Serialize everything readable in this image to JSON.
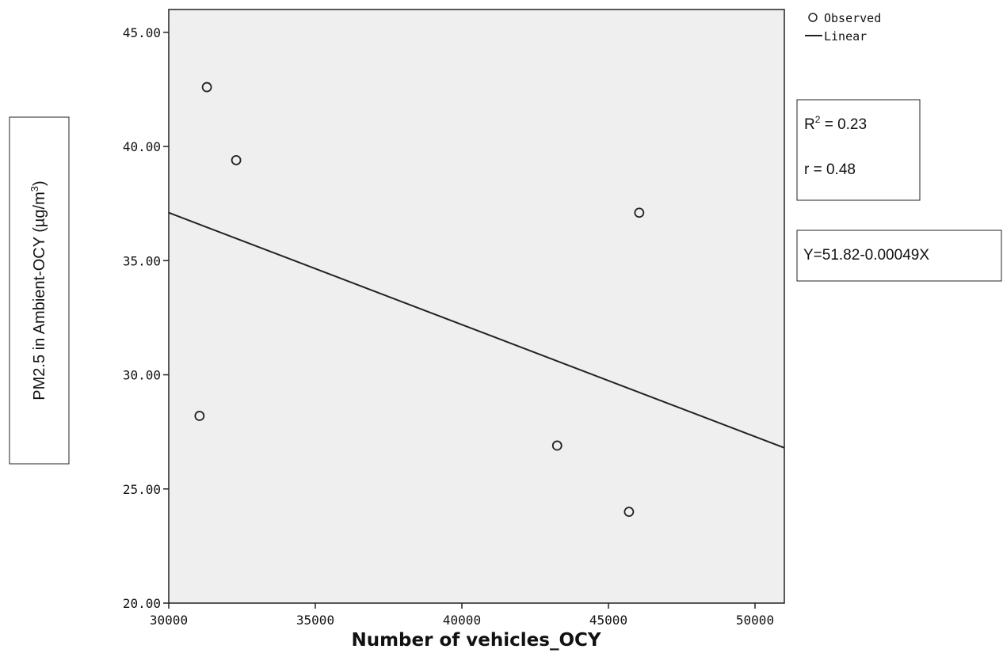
{
  "chart_data": {
    "type": "scatter",
    "xlabel": "Number of vehicles_OCY",
    "ylabel": "PM2.5 in Ambient-OCY (µg/m³)",
    "ylabel_prefix": "PM2.5 in Ambient-OCY (",
    "ylabel_unit": "µg/m",
    "ylabel_sup": "3",
    "ylabel_suffix": ")",
    "xlim": [
      30000,
      51000
    ],
    "ylim": [
      20.0,
      46.0
    ],
    "x_ticks": [
      "30000",
      "35000",
      "40000",
      "45000",
      "50000"
    ],
    "y_ticks": [
      "20.00",
      "25.00",
      "30.00",
      "35.00",
      "40.00",
      "45.00"
    ],
    "x_tick_values": [
      30000,
      35000,
      40000,
      45000,
      50000
    ],
    "y_tick_values": [
      20,
      25,
      30,
      35,
      40,
      45
    ],
    "series": [
      {
        "name": "Observed",
        "points": [
          {
            "x": 31300,
            "y": 42.6
          },
          {
            "x": 32300,
            "y": 39.4
          },
          {
            "x": 31050,
            "y": 28.2
          },
          {
            "x": 46050,
            "y": 37.1
          },
          {
            "x": 43250,
            "y": 26.9
          },
          {
            "x": 45700,
            "y": 24.0
          }
        ]
      },
      {
        "name": "Linear",
        "line": [
          {
            "x": 30000,
            "y": 37.1
          },
          {
            "x": 51000,
            "y": 26.8
          }
        ]
      }
    ],
    "legend": {
      "position": "top-right",
      "observed_label": "Observed",
      "linear_label": "Linear"
    },
    "annotations": {
      "r2_base": "R",
      "r2_sup": "2",
      "r2_value": " = 0.23",
      "r_text": "r = 0.48",
      "equation": "Y=51.82-0.00049X"
    },
    "colors": {
      "plot_background": "#efefef",
      "marker_fill": "#efefef",
      "marker_stroke": "#222222",
      "line": "#222222"
    },
    "grid": false
  }
}
